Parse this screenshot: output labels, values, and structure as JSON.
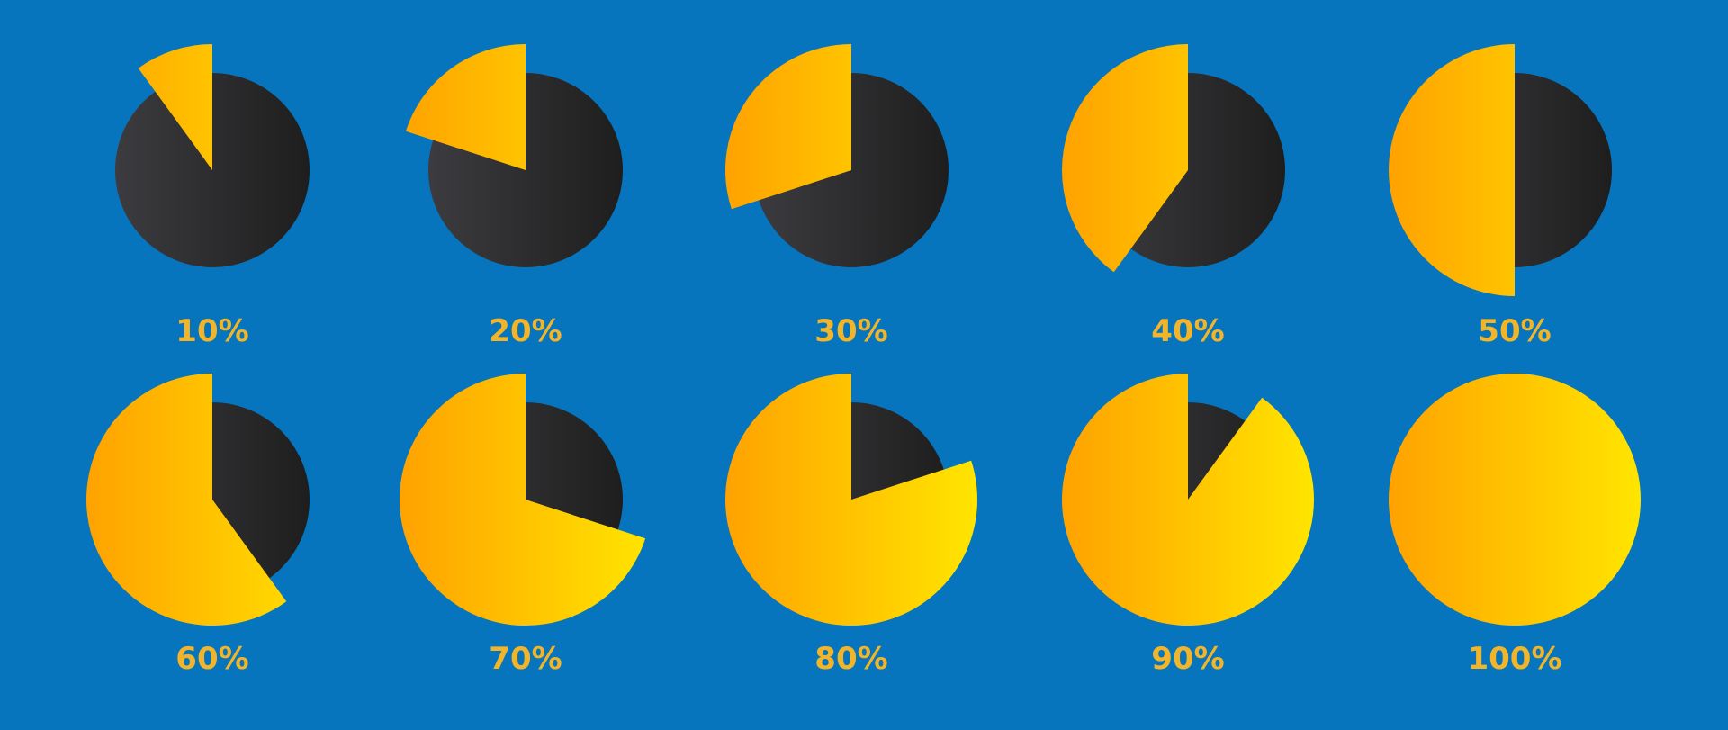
{
  "colors": {
    "background": "#0675BD",
    "dark_disc_light": "#3C3C40",
    "dark_disc_dark": "#1E1E1E",
    "slice_orange": "#FFA200",
    "slice_yellow": "#FFE500",
    "label": "#F2B52A"
  },
  "chart_data": [
    {
      "type": "pie",
      "label": "10%",
      "value": 10
    },
    {
      "type": "pie",
      "label": "20%",
      "value": 20
    },
    {
      "type": "pie",
      "label": "30%",
      "value": 30
    },
    {
      "type": "pie",
      "label": "40%",
      "value": 40
    },
    {
      "type": "pie",
      "label": "50%",
      "value": 50
    },
    {
      "type": "pie",
      "label": "60%",
      "value": 60
    },
    {
      "type": "pie",
      "label": "70%",
      "value": 70
    },
    {
      "type": "pie",
      "label": "80%",
      "value": 80
    },
    {
      "type": "pie",
      "label": "90%",
      "value": 90
    },
    {
      "type": "pie",
      "label": "100%",
      "value": 100
    }
  ]
}
